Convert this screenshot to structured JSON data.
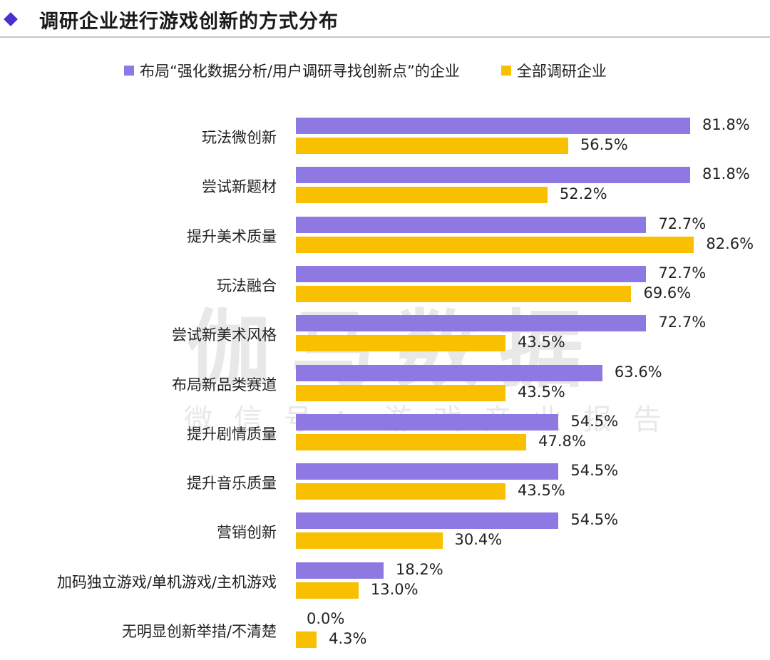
{
  "header": {
    "title": "调研企业进行游戏创新的方式分布",
    "accent_color": "#4b2fd1"
  },
  "legend": [
    {
      "label": "布局“强化数据分析/用户调研寻找创新点”的企业",
      "color": "#8e78e2"
    },
    {
      "label": "全部调研企业",
      "color": "#f8c000"
    }
  ],
  "watermark": {
    "main": "伽马数据",
    "sub": "微信号：游戏产业报告"
  },
  "rows": [
    {
      "category": "玩法微创新",
      "a_label": "81.8%",
      "b_label": "56.5%"
    },
    {
      "category": "尝试新题材",
      "a_label": "81.8%",
      "b_label": "52.2%"
    },
    {
      "category": "提升美术质量",
      "a_label": "72.7%",
      "b_label": "82.6%"
    },
    {
      "category": "玩法融合",
      "a_label": "72.7%",
      "b_label": "69.6%"
    },
    {
      "category": "尝试新美术风格",
      "a_label": "72.7%",
      "b_label": "43.5%"
    },
    {
      "category": "布局新品类赛道",
      "a_label": "63.6%",
      "b_label": "43.5%"
    },
    {
      "category": "提升剧情质量",
      "a_label": "54.5%",
      "b_label": "47.8%"
    },
    {
      "category": "提升音乐质量",
      "a_label": "54.5%",
      "b_label": "43.5%"
    },
    {
      "category": "营销创新",
      "a_label": "54.5%",
      "b_label": "30.4%"
    },
    {
      "category": "加码独立游戏/单机游戏/主机游戏",
      "a_label": "18.2%",
      "b_label": "13.0%"
    },
    {
      "category": "无明显创新举措/不清楚",
      "a_label": "0.0%",
      "b_label": "4.3%"
    }
  ],
  "chart_data": {
    "type": "bar",
    "orientation": "horizontal",
    "title": "调研企业进行游戏创新的方式分布",
    "xlabel": "",
    "ylabel": "",
    "unit": "%",
    "grid": false,
    "legend_position": "top",
    "categories": [
      "玩法微创新",
      "尝试新题材",
      "提升美术质量",
      "玩法融合",
      "尝试新美术风格",
      "布局新品类赛道",
      "提升剧情质量",
      "提升音乐质量",
      "营销创新",
      "加码独立游戏/单机游戏/主机游戏",
      "无明显创新举措/不清楚"
    ],
    "series": [
      {
        "name": "布局“强化数据分析/用户调研寻找创新点”的企业",
        "color": "#8e78e2",
        "values": [
          81.8,
          81.8,
          72.7,
          72.7,
          72.7,
          63.6,
          54.5,
          54.5,
          54.5,
          18.2,
          0.0
        ]
      },
      {
        "name": "全部调研企业",
        "color": "#f8c000",
        "values": [
          56.5,
          52.2,
          82.6,
          69.6,
          43.5,
          43.5,
          47.8,
          43.5,
          30.4,
          13.0,
          4.3
        ]
      }
    ],
    "xlim": [
      0,
      90
    ]
  }
}
